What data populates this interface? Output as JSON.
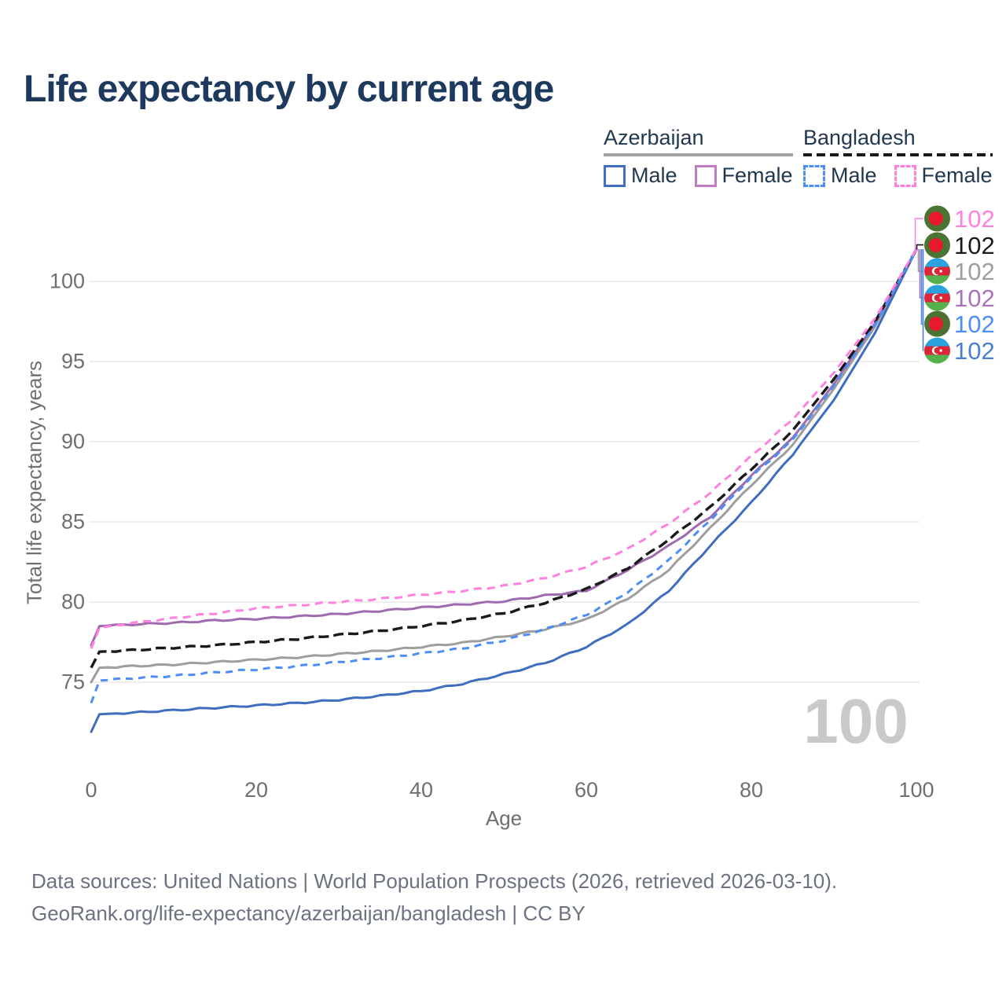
{
  "title": "Life expectancy by current age",
  "watermark_age": "100",
  "legend": {
    "groups": [
      {
        "name": "Azerbaijan",
        "line_style": "solid",
        "sample_color": "#a3a3a3",
        "items": [
          {
            "label": "Male",
            "color": "#3f6dbf"
          },
          {
            "label": "Female",
            "color": "#bd7fc2"
          }
        ]
      },
      {
        "name": "Bangladesh",
        "line_style": "dashed",
        "sample_color": "#1a1a1a",
        "items": [
          {
            "label": "Male",
            "color": "#4d8ef5"
          },
          {
            "label": "Female",
            "color": "#ff80df"
          }
        ]
      }
    ]
  },
  "chart_data": {
    "type": "line",
    "title": "Life expectancy by current age",
    "xlabel": "Age",
    "ylabel": "Total life expectancy, years",
    "xlim": [
      0,
      100
    ],
    "ylim": [
      71.5,
      103
    ],
    "x_ticks": [
      0,
      20,
      40,
      60,
      80,
      100
    ],
    "y_ticks": [
      75,
      80,
      85,
      90,
      95,
      100
    ],
    "grid": "horizontal",
    "legend_position": "top-right",
    "series": [
      {
        "key": "az_both",
        "name": "Azerbaijan Both sexes",
        "country": "Azerbaijan",
        "sex": "Both",
        "color": "#9e9e9e",
        "line_style": "solid",
        "end_value": 102,
        "points": [
          [
            0,
            75.0
          ],
          [
            1,
            75.9
          ],
          [
            5,
            76.0
          ],
          [
            10,
            76.1
          ],
          [
            15,
            76.25
          ],
          [
            20,
            76.4
          ],
          [
            25,
            76.55
          ],
          [
            30,
            76.75
          ],
          [
            35,
            76.95
          ],
          [
            40,
            77.2
          ],
          [
            45,
            77.45
          ],
          [
            50,
            77.85
          ],
          [
            55,
            78.3
          ],
          [
            60,
            78.9
          ],
          [
            65,
            80.2
          ],
          [
            70,
            82.0
          ],
          [
            75,
            84.6
          ],
          [
            80,
            87.3
          ],
          [
            85,
            89.8
          ],
          [
            90,
            93.3
          ],
          [
            95,
            97.2
          ],
          [
            100,
            102
          ]
        ]
      },
      {
        "key": "az_female",
        "name": "Azerbaijan Female",
        "country": "Azerbaijan",
        "sex": "Female",
        "color": "#9e6bae",
        "line_style": "solid",
        "end_value": 102,
        "points": [
          [
            0,
            77.3
          ],
          [
            1,
            78.5
          ],
          [
            5,
            78.6
          ],
          [
            10,
            78.7
          ],
          [
            15,
            78.85
          ],
          [
            20,
            78.95
          ],
          [
            25,
            79.1
          ],
          [
            30,
            79.25
          ],
          [
            35,
            79.45
          ],
          [
            40,
            79.65
          ],
          [
            45,
            79.85
          ],
          [
            50,
            80.05
          ],
          [
            55,
            80.4
          ],
          [
            60,
            80.7
          ],
          [
            65,
            82.0
          ],
          [
            70,
            83.5
          ],
          [
            75,
            85.3
          ],
          [
            80,
            87.9
          ],
          [
            85,
            90.2
          ],
          [
            90,
            93.6
          ],
          [
            95,
            97.4
          ],
          [
            100,
            102
          ]
        ]
      },
      {
        "key": "az_male",
        "name": "Azerbaijan Male",
        "country": "Azerbaijan",
        "sex": "Male",
        "color": "#3f6dbf",
        "line_style": "solid",
        "end_value": 102,
        "points": [
          [
            0,
            71.9
          ],
          [
            1,
            73.0
          ],
          [
            5,
            73.1
          ],
          [
            10,
            73.25
          ],
          [
            15,
            73.4
          ],
          [
            20,
            73.55
          ],
          [
            25,
            73.7
          ],
          [
            30,
            73.9
          ],
          [
            35,
            74.15
          ],
          [
            40,
            74.45
          ],
          [
            45,
            74.9
          ],
          [
            50,
            75.5
          ],
          [
            55,
            76.2
          ],
          [
            60,
            77.2
          ],
          [
            65,
            78.6
          ],
          [
            70,
            80.7
          ],
          [
            75,
            83.5
          ],
          [
            80,
            86.2
          ],
          [
            85,
            89.2
          ],
          [
            90,
            92.6
          ],
          [
            95,
            96.8
          ],
          [
            100,
            102
          ]
        ]
      },
      {
        "key": "bd_both",
        "name": "Bangladesh Both sexes",
        "country": "Bangladesh",
        "sex": "Both",
        "color": "#1a1a1a",
        "line_style": "dashed",
        "end_value": 102,
        "points": [
          [
            0,
            75.9
          ],
          [
            1,
            76.9
          ],
          [
            5,
            77.0
          ],
          [
            10,
            77.15
          ],
          [
            15,
            77.3
          ],
          [
            20,
            77.5
          ],
          [
            25,
            77.7
          ],
          [
            30,
            77.95
          ],
          [
            35,
            78.2
          ],
          [
            40,
            78.5
          ],
          [
            45,
            78.85
          ],
          [
            50,
            79.3
          ],
          [
            55,
            79.95
          ],
          [
            60,
            80.8
          ],
          [
            65,
            82.1
          ],
          [
            70,
            83.9
          ],
          [
            75,
            85.9
          ],
          [
            80,
            88.3
          ],
          [
            85,
            90.7
          ],
          [
            90,
            93.9
          ],
          [
            95,
            97.5
          ],
          [
            100,
            102
          ]
        ]
      },
      {
        "key": "bd_male",
        "name": "Bangladesh Male",
        "country": "Bangladesh",
        "sex": "Male",
        "color": "#4d8ef5",
        "line_style": "dashed",
        "end_value": 102,
        "points": [
          [
            0,
            73.7
          ],
          [
            1,
            75.1
          ],
          [
            5,
            75.25
          ],
          [
            10,
            75.4
          ],
          [
            15,
            75.6
          ],
          [
            20,
            75.8
          ],
          [
            25,
            76.0
          ],
          [
            30,
            76.25
          ],
          [
            35,
            76.5
          ],
          [
            40,
            76.8
          ],
          [
            45,
            77.1
          ],
          [
            50,
            77.6
          ],
          [
            55,
            78.3
          ],
          [
            60,
            79.2
          ],
          [
            65,
            80.6
          ],
          [
            70,
            82.6
          ],
          [
            75,
            85.1
          ],
          [
            80,
            87.8
          ],
          [
            85,
            90.1
          ],
          [
            90,
            93.5
          ],
          [
            95,
            97.3
          ],
          [
            100,
            102
          ]
        ]
      },
      {
        "key": "bd_female",
        "name": "Bangladesh Female",
        "country": "Bangladesh",
        "sex": "Female",
        "color": "#ff80df",
        "line_style": "dashed",
        "end_value": 102,
        "points": [
          [
            0,
            77.1
          ],
          [
            1,
            78.4
          ],
          [
            5,
            78.7
          ],
          [
            10,
            79.0
          ],
          [
            15,
            79.3
          ],
          [
            20,
            79.6
          ],
          [
            25,
            79.8
          ],
          [
            30,
            80.0
          ],
          [
            35,
            80.2
          ],
          [
            40,
            80.45
          ],
          [
            45,
            80.7
          ],
          [
            50,
            81.0
          ],
          [
            55,
            81.5
          ],
          [
            60,
            82.2
          ],
          [
            65,
            83.3
          ],
          [
            70,
            84.9
          ],
          [
            75,
            86.8
          ],
          [
            80,
            89.1
          ],
          [
            85,
            91.4
          ],
          [
            90,
            94.3
          ],
          [
            95,
            97.7
          ],
          [
            100,
            102
          ]
        ]
      }
    ],
    "end_labels": [
      {
        "series": "Bangladesh Female",
        "flag": "bd",
        "text": "102",
        "color": "#ff80df"
      },
      {
        "series": "Bangladesh Both sexes",
        "flag": "bd",
        "text": "102",
        "color": "#1a1a1a"
      },
      {
        "series": "Azerbaijan Both sexes",
        "flag": "az",
        "text": "102",
        "color": "#9e9e9e"
      },
      {
        "series": "Azerbaijan Female",
        "flag": "az",
        "text": "102",
        "color": "#a873b8"
      },
      {
        "series": "Bangladesh Male",
        "flag": "bd",
        "text": "102",
        "color": "#4d8ef5"
      },
      {
        "series": "Azerbaijan Male",
        "flag": "az",
        "text": "102",
        "color": "#4a7fd0"
      }
    ]
  },
  "footer": {
    "line1": "Data sources: United Nations | World Population Prospects (2026, retrieved 2026-03-10).",
    "line2": "GeoRank.org/life-expectancy/azerbaijan/bangladesh | CC BY"
  }
}
